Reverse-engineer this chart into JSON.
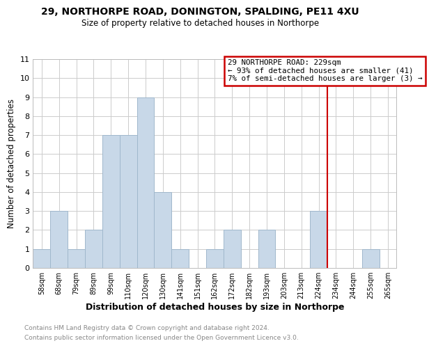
{
  "title": "29, NORTHORPE ROAD, DONINGTON, SPALDING, PE11 4XU",
  "subtitle": "Size of property relative to detached houses in Northorpe",
  "xlabel": "Distribution of detached houses by size in Northorpe",
  "ylabel": "Number of detached properties",
  "bar_color": "#c8d8e8",
  "bar_edge_color": "#a0b8cc",
  "bin_labels": [
    "58sqm",
    "68sqm",
    "79sqm",
    "89sqm",
    "99sqm",
    "110sqm",
    "120sqm",
    "130sqm",
    "141sqm",
    "151sqm",
    "162sqm",
    "172sqm",
    "182sqm",
    "193sqm",
    "203sqm",
    "213sqm",
    "224sqm",
    "234sqm",
    "244sqm",
    "255sqm",
    "265sqm"
  ],
  "bar_heights": [
    1,
    3,
    1,
    2,
    7,
    7,
    9,
    4,
    1,
    0,
    1,
    2,
    0,
    2,
    0,
    0,
    3,
    0,
    0,
    1,
    0
  ],
  "ylim": [
    0,
    11
  ],
  "yticks": [
    0,
    1,
    2,
    3,
    4,
    5,
    6,
    7,
    8,
    9,
    10,
    11
  ],
  "property_line_index": 16.5,
  "annotation_title": "29 NORTHORPE ROAD: 229sqm",
  "annotation_line1": "← 93% of detached houses are smaller (41)",
  "annotation_line2": "7% of semi-detached houses are larger (3) →",
  "annotation_box_color": "#ffffff",
  "annotation_box_edge": "#cc0000",
  "property_line_color": "#cc0000",
  "footer1": "Contains HM Land Registry data © Crown copyright and database right 2024.",
  "footer2": "Contains public sector information licensed under the Open Government Licence v3.0.",
  "background_color": "#ffffff",
  "grid_color": "#cccccc"
}
